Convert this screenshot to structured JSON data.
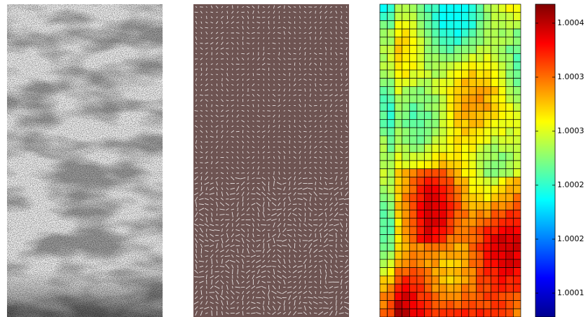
{
  "colorbar": {
    "tick_labels": [
      "1.0004",
      "1.0003",
      "1.0003",
      "1.0002",
      "1.0002",
      "1.0001"
    ]
  }
}
